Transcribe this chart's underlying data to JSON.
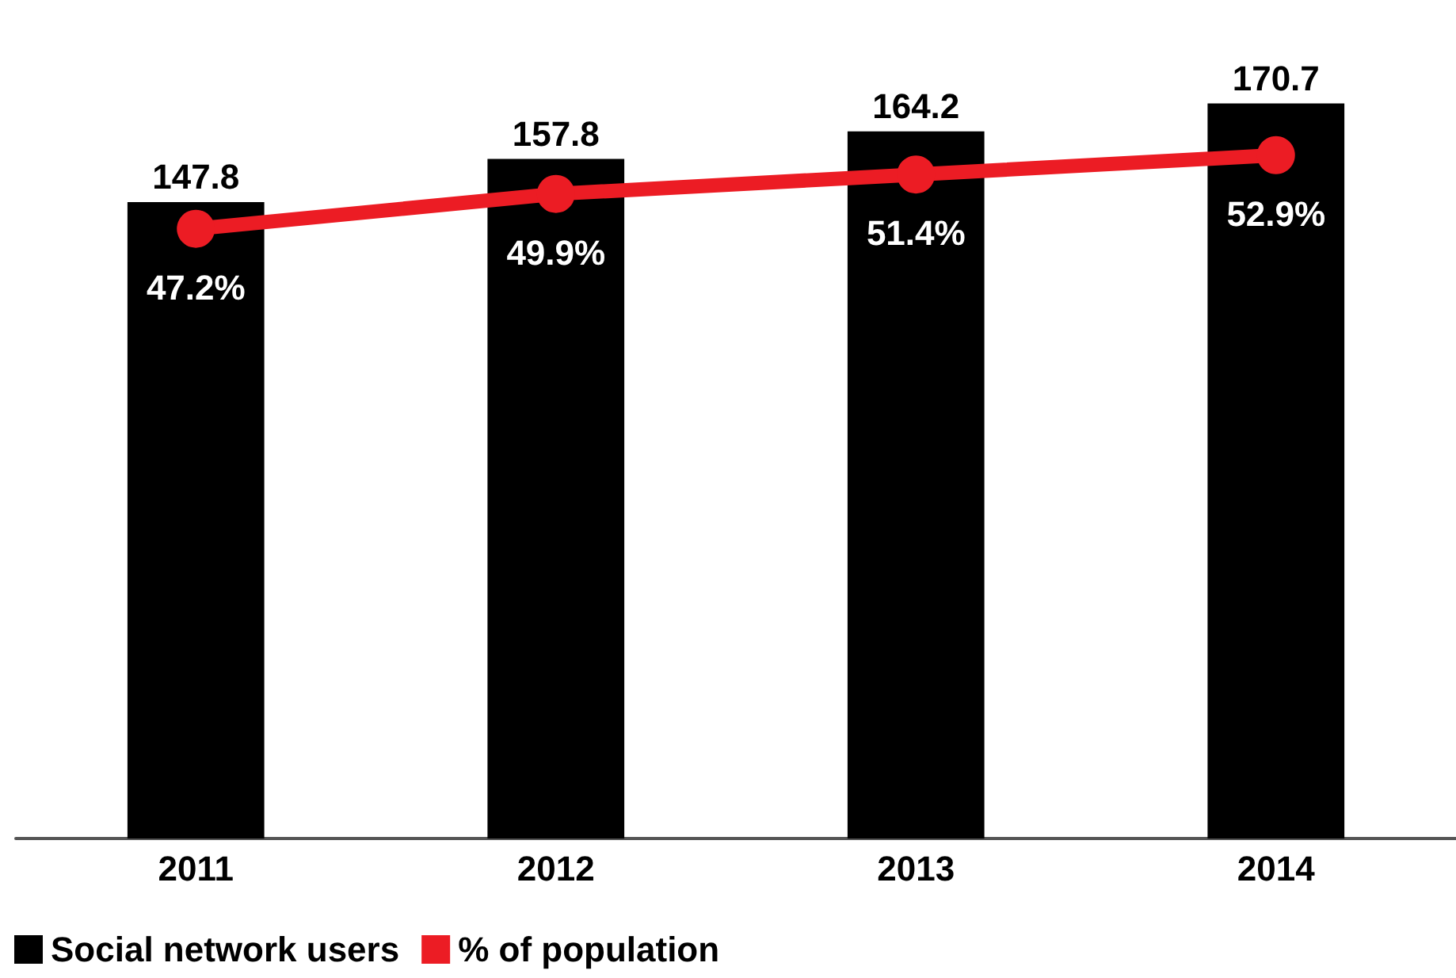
{
  "chart_data": {
    "type": "bar",
    "categories": [
      "2011",
      "2012",
      "2013",
      "2014"
    ],
    "series": [
      {
        "name": "Social network users",
        "color": "#000000",
        "values": [
          147.8,
          157.8,
          164.2,
          170.7
        ]
      },
      {
        "name": "% of population",
        "type": "line",
        "axis": "y2",
        "color": "#ec1c24",
        "values": [
          47.2,
          49.9,
          51.4,
          52.9
        ],
        "value_labels": [
          "47.2%",
          "49.9%",
          "51.4%",
          "52.9%"
        ]
      }
    ],
    "data_labels": true,
    "legend": "bottom left",
    "grid": false,
    "marker": "circle",
    "line_style": "solid"
  }
}
